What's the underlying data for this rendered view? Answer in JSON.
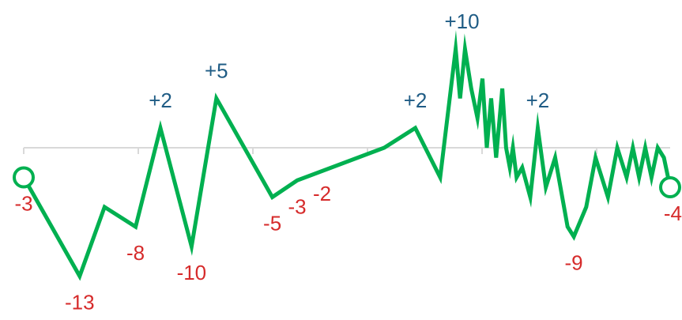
{
  "chart_data": {
    "type": "line",
    "title": "",
    "xlabel": "",
    "ylabel": "",
    "grid": false,
    "ylim": [
      -14,
      11
    ],
    "x_range": [
      0,
      100
    ],
    "colors": {
      "line": "#00b050",
      "axis": "#d9d9d9",
      "positive_label": "#1f5c85",
      "negative_label": "#d62b2b",
      "endpoint_fill": "#ffffff"
    },
    "series": [
      {
        "points": [
          {
            "x": 0,
            "y": -3
          },
          {
            "x": 9,
            "y": -13
          },
          {
            "x": 13,
            "y": -6
          },
          {
            "x": 18,
            "y": -8
          },
          {
            "x": 22,
            "y": 2
          },
          {
            "x": 27,
            "y": -10
          },
          {
            "x": 31,
            "y": 5
          },
          {
            "x": 40,
            "y": -5
          },
          {
            "x": 44,
            "y": -3.3
          },
          {
            "x": 58,
            "y": 0
          },
          {
            "x": 63,
            "y": 2
          },
          {
            "x": 67,
            "y": -3
          },
          {
            "x": 69.5,
            "y": 10
          },
          {
            "x": 70.2,
            "y": 5
          },
          {
            "x": 71,
            "y": 10
          },
          {
            "x": 72,
            "y": 6
          },
          {
            "x": 73,
            "y": 3
          },
          {
            "x": 73.8,
            "y": 7
          },
          {
            "x": 74.5,
            "y": 0
          },
          {
            "x": 75.2,
            "y": 5
          },
          {
            "x": 76,
            "y": -1
          },
          {
            "x": 77,
            "y": 6
          },
          {
            "x": 77.6,
            "y": 0
          },
          {
            "x": 78.2,
            "y": -2
          },
          {
            "x": 78.7,
            "y": 0
          },
          {
            "x": 79.3,
            "y": -3
          },
          {
            "x": 80.2,
            "y": -2
          },
          {
            "x": 81.5,
            "y": -5
          },
          {
            "x": 82.7,
            "y": 2
          },
          {
            "x": 84,
            "y": -4
          },
          {
            "x": 85.5,
            "y": -1
          },
          {
            "x": 87.5,
            "y": -8
          },
          {
            "x": 88.5,
            "y": -9
          },
          {
            "x": 90.5,
            "y": -6
          },
          {
            "x": 92,
            "y": -1
          },
          {
            "x": 94,
            "y": -5
          },
          {
            "x": 95.5,
            "y": 0
          },
          {
            "x": 97,
            "y": -3
          },
          {
            "x": 98,
            "y": 0
          },
          {
            "x": 99,
            "y": -3
          },
          {
            "x": 100,
            "y": 0
          },
          {
            "x": 101,
            "y": -3
          },
          {
            "x": 102,
            "y": 0
          },
          {
            "x": 103,
            "y": -1
          },
          {
            "x": 104,
            "y": -4
          }
        ]
      }
    ],
    "markers": [
      {
        "x": 0,
        "y": -3,
        "style": "hollow-circle"
      },
      {
        "x": 104,
        "y": -4,
        "style": "hollow-circle"
      }
    ],
    "data_labels": [
      {
        "text": "-3",
        "x": 0,
        "y": -3,
        "sign": "negative"
      },
      {
        "text": "-13",
        "x": 9,
        "y": -13,
        "sign": "negative"
      },
      {
        "text": "-8",
        "x": 18,
        "y": -8,
        "sign": "negative"
      },
      {
        "text": "+2",
        "x": 22,
        "y": 2,
        "sign": "positive"
      },
      {
        "text": "-10",
        "x": 27,
        "y": -10,
        "sign": "negative"
      },
      {
        "text": "+5",
        "x": 31,
        "y": 5,
        "sign": "positive"
      },
      {
        "text": "-5",
        "x": 40,
        "y": -5,
        "sign": "negative"
      },
      {
        "text": "-3",
        "x": 44,
        "y": -3.3,
        "sign": "negative"
      },
      {
        "text": "-2",
        "x": 48,
        "y": -2,
        "sign": "negative"
      },
      {
        "text": "+2",
        "x": 63,
        "y": 2,
        "sign": "positive"
      },
      {
        "text": "+10",
        "x": 70.5,
        "y": 10,
        "sign": "positive"
      },
      {
        "text": "+2",
        "x": 82.7,
        "y": 2,
        "sign": "positive"
      },
      {
        "text": "-9",
        "x": 88.5,
        "y": -9,
        "sign": "negative"
      },
      {
        "text": "-4",
        "x": 104,
        "y": -4,
        "sign": "negative"
      }
    ]
  }
}
